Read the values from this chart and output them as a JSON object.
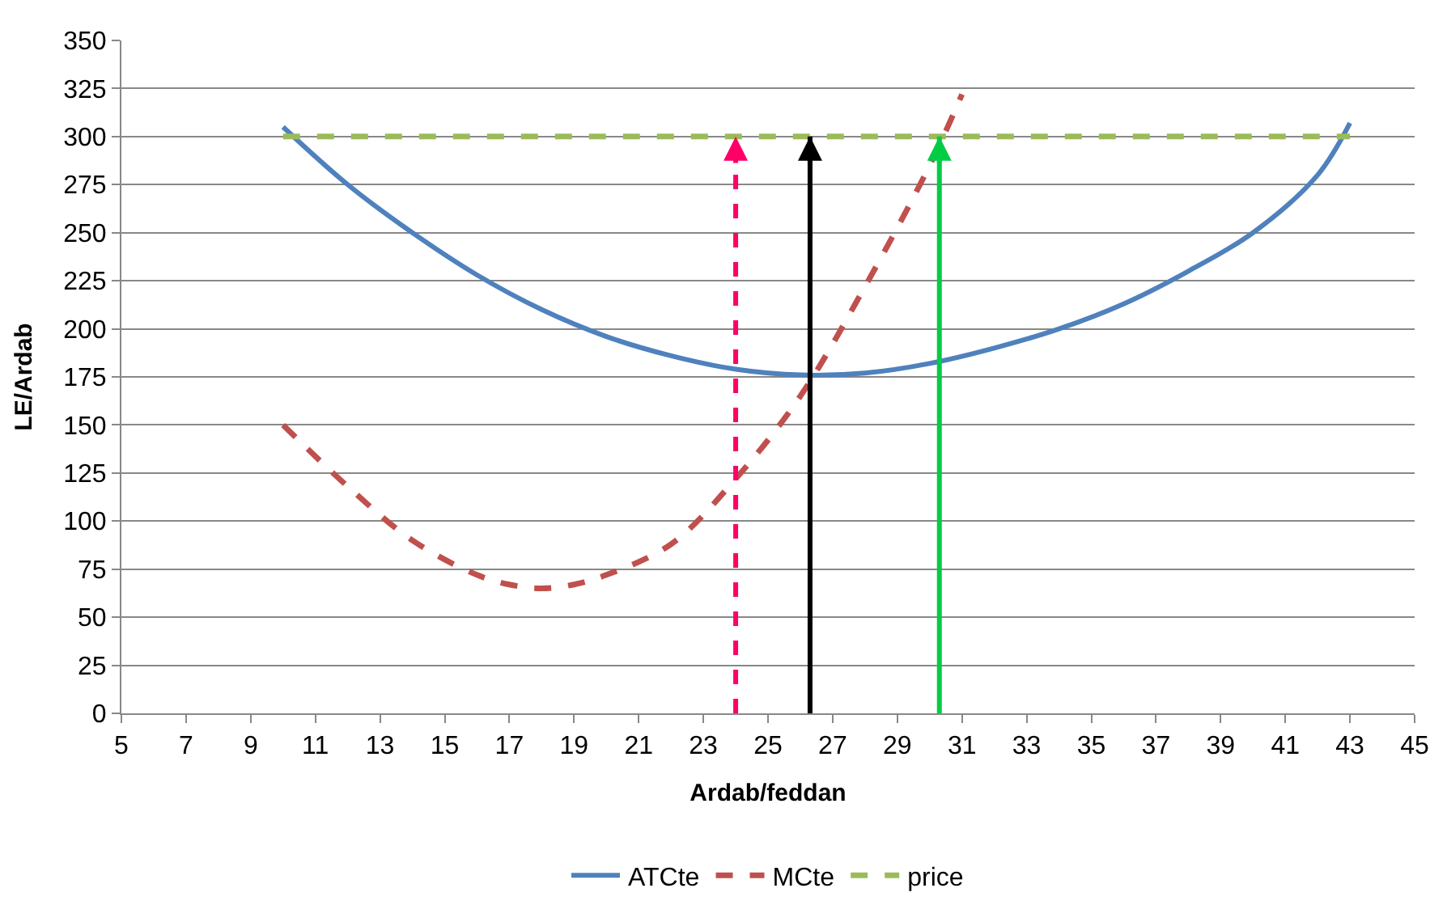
{
  "chart_data": {
    "type": "line",
    "xlabel": "Ardab/feddan",
    "ylabel": "LE/Ardab",
    "xlim": [
      5,
      45
    ],
    "xticks": [
      5,
      7,
      9,
      11,
      13,
      15,
      17,
      19,
      21,
      23,
      25,
      27,
      29,
      31,
      33,
      35,
      37,
      39,
      41,
      43,
      45
    ],
    "ylim": [
      0,
      350
    ],
    "yticks": [
      0,
      25,
      50,
      75,
      100,
      125,
      150,
      175,
      200,
      225,
      250,
      275,
      300,
      325,
      350
    ],
    "grid": "y",
    "legend": "bottom",
    "marker": "none",
    "series": [
      {
        "name": "ATCte",
        "color": "#4f81bd",
        "line_style": "solid",
        "x": [
          10,
          12,
          14,
          16,
          18,
          20,
          22,
          24,
          26,
          28,
          30,
          32,
          34,
          36,
          38,
          40,
          42,
          43
        ],
        "values": [
          305,
          275,
          250,
          228,
          210,
          196,
          186,
          179,
          176,
          177,
          182,
          190,
          200,
          213,
          230,
          250,
          280,
          307
        ]
      },
      {
        "name": "MCte",
        "color": "#c0504d",
        "line_style": "dashed",
        "x": [
          10,
          12,
          14,
          16,
          17,
          18,
          19,
          20,
          22,
          24,
          26,
          28,
          30,
          31
        ],
        "values": [
          150,
          118,
          90,
          72,
          67,
          65,
          67,
          72,
          88,
          122,
          165,
          222,
          285,
          322
        ]
      },
      {
        "name": "price",
        "color": "#9bbb59",
        "line_style": "dashed",
        "x": [
          10,
          43
        ],
        "values": [
          300,
          300
        ]
      }
    ],
    "ref_lines": [
      {
        "axis": "x",
        "value": 24,
        "color": "#ff0066",
        "line_style": "dashed"
      },
      {
        "axis": "x",
        "value": 26.3,
        "color": "#000000",
        "line_style": "solid"
      },
      {
        "axis": "x",
        "value": 30.3,
        "color": "#00cc44",
        "line_style": "solid"
      }
    ]
  }
}
